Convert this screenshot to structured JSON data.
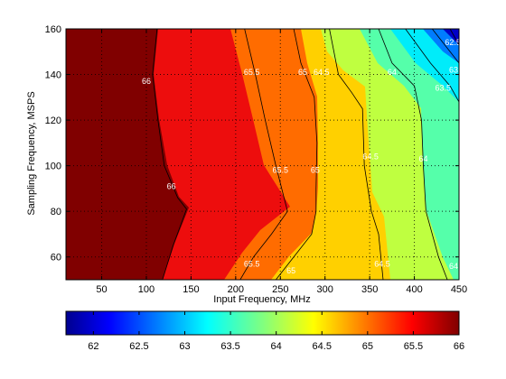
{
  "chart_data": {
    "type": "contour",
    "xlabel": "Input Frequency, MHz",
    "ylabel": "Sampling Frequency, MSPS",
    "xlim": [
      10,
      450
    ],
    "ylim": [
      50,
      160
    ],
    "x_ticks": [
      "50",
      "100",
      "150",
      "200",
      "250",
      "300",
      "350",
      "400",
      "450"
    ],
    "y_ticks": [
      "60",
      "80",
      "100",
      "120",
      "140",
      "160"
    ],
    "grid": true,
    "colormap": "jet",
    "levels": [
      62,
      62.5,
      63,
      63.5,
      64,
      64.5,
      65,
      65.5,
      66
    ],
    "colorbar": {
      "position": "bottom",
      "range": [
        61.7,
        66
      ],
      "ticks": [
        "62",
        "62.5",
        "63",
        "63.5",
        "64",
        "64.5",
        "65",
        "65.5",
        "66"
      ]
    },
    "contour_lines": [
      {
        "level": "66",
        "points": [
          [
            112,
            160
          ],
          [
            107,
            140
          ],
          [
            113,
            120
          ],
          [
            120,
            100
          ],
          [
            135,
            86
          ],
          [
            145,
            81
          ],
          [
            130,
            65
          ],
          [
            118,
            50
          ]
        ]
      },
      {
        "level": "65.5",
        "points": [
          [
            210,
            160
          ],
          [
            222,
            140
          ],
          [
            233,
            120
          ],
          [
            245,
            100
          ],
          [
            258,
            80
          ],
          [
            240,
            70
          ],
          [
            220,
            60
          ],
          [
            205,
            50
          ]
        ]
      },
      {
        "level": "65",
        "points": [
          [
            265,
            160
          ],
          [
            273,
            145
          ],
          [
            288,
            130
          ],
          [
            291,
            110
          ],
          [
            290,
            90
          ],
          [
            290,
            80
          ],
          [
            285,
            70
          ],
          [
            265,
            60
          ],
          [
            245,
            50
          ]
        ]
      },
      {
        "level": "64.5",
        "points": [
          [
            305,
            160
          ],
          [
            315,
            140
          ],
          [
            330,
            132
          ],
          [
            342,
            125
          ],
          [
            344,
            100
          ],
          [
            352,
            80
          ],
          [
            360,
            70
          ],
          [
            365,
            50
          ]
        ]
      },
      {
        "level": "64",
        "points": [
          [
            360,
            160
          ],
          [
            375,
            145
          ],
          [
            400,
            135
          ],
          [
            408,
            120
          ],
          [
            410,
            100
          ],
          [
            413,
            80
          ],
          [
            427,
            60
          ],
          [
            437,
            50
          ]
        ]
      },
      {
        "level": "63.5",
        "points": [
          [
            390,
            160
          ],
          [
            418,
            145
          ],
          [
            440,
            135
          ],
          [
            450,
            128
          ]
        ]
      },
      {
        "level": "63",
        "points": [
          [
            420,
            160
          ],
          [
            440,
            150
          ],
          [
            450,
            145
          ]
        ]
      },
      {
        "level": "62.5",
        "points": [
          [
            440,
            160
          ],
          [
            450,
            153
          ]
        ]
      }
    ],
    "contour_labels": [
      {
        "text": "66",
        "x": 100,
        "y": 137
      },
      {
        "text": "66",
        "x": 128,
        "y": 91
      },
      {
        "text": "65.5",
        "x": 218,
        "y": 141
      },
      {
        "text": "65.5",
        "x": 250,
        "y": 98
      },
      {
        "text": "65.5",
        "x": 218,
        "y": 57
      },
      {
        "text": "65",
        "x": 275,
        "y": 141
      },
      {
        "text": "65",
        "x": 289,
        "y": 98
      },
      {
        "text": "65",
        "x": 262,
        "y": 54
      },
      {
        "text": "64.5",
        "x": 296,
        "y": 141
      },
      {
        "text": "64.5",
        "x": 351,
        "y": 104
      },
      {
        "text": "64.5",
        "x": 364,
        "y": 57
      },
      {
        "text": "64",
        "x": 375,
        "y": 141
      },
      {
        "text": "64",
        "x": 410,
        "y": 103
      },
      {
        "text": "64",
        "x": 444,
        "y": 56
      },
      {
        "text": "63.5",
        "x": 432,
        "y": 134
      },
      {
        "text": "63",
        "x": 444,
        "y": 142
      },
      {
        "text": "62.5",
        "x": 443,
        "y": 154
      }
    ]
  }
}
